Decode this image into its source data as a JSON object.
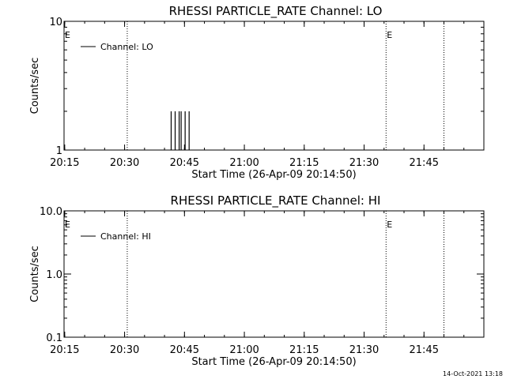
{
  "footer_timestamp": "14-Oct-2021 13:18",
  "chart_data": [
    {
      "type": "line",
      "title": "RHESSI PARTICLE_RATE Channel: LO",
      "xlabel": "Start Time (26-Apr-09 20:14:50)",
      "ylabel": "Counts/sec",
      "yscale": "log",
      "ylim": [
        1,
        10
      ],
      "ytick_labels": [
        "1",
        "10"
      ],
      "xlim": [
        "20:14:50",
        "22:00:00"
      ],
      "x_tick_labels": [
        "20:15",
        "20:30",
        "20:45",
        "21:00",
        "21:15",
        "21:30",
        "21:45"
      ],
      "legend": {
        "position": "top-left",
        "label": "Channel: LO"
      },
      "marker_label": "E",
      "event_lines": [
        "20:30:40",
        "21:35:30",
        "21:50:00"
      ],
      "series": [
        {
          "name": "Channel: LO",
          "x": [
            "20:41:40",
            "20:42:10",
            "20:42:40",
            "20:43:10",
            "20:43:40",
            "20:44:10",
            "20:44:40",
            "20:45:10",
            "20:45:40",
            "20:46:10",
            "20:46:40"
          ],
          "y": [
            2,
            1,
            2,
            1,
            2,
            2,
            1,
            2,
            1,
            2,
            1
          ]
        }
      ]
    },
    {
      "type": "line",
      "title": "RHESSI PARTICLE_RATE Channel: HI",
      "xlabel": "Start Time (26-Apr-09 20:14:50)",
      "ylabel": "Counts/sec",
      "yscale": "log",
      "ylim": [
        0.1,
        10
      ],
      "ytick_labels": [
        "0.1",
        "1.0",
        "10.0"
      ],
      "xlim": [
        "20:14:50",
        "22:00:00"
      ],
      "x_tick_labels": [
        "20:15",
        "20:30",
        "20:45",
        "21:00",
        "21:15",
        "21:30",
        "21:45"
      ],
      "legend": {
        "position": "top-left",
        "label": "Channel: HI"
      },
      "marker_label": "E",
      "event_lines": [
        "20:30:40",
        "21:35:30",
        "21:50:00"
      ],
      "series": [
        {
          "name": "Channel: HI",
          "x": [],
          "y": []
        }
      ]
    }
  ]
}
